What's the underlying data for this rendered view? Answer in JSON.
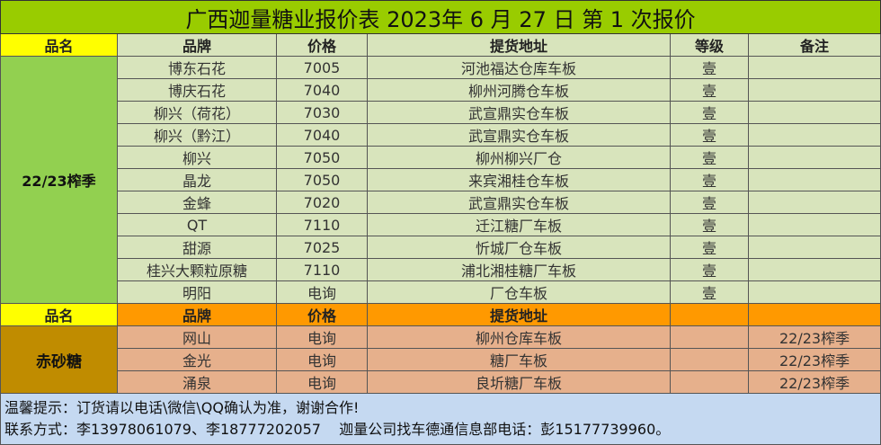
{
  "title": "广西迦量糖业报价表 2023年 6 月 27 日 第 1 次报价",
  "header1": {
    "name": "品名",
    "brand": "品牌",
    "price": "价格",
    "address": "提货地址",
    "grade": "等级",
    "remark": "备注"
  },
  "group1": {
    "label": "22/23榨季",
    "rows": [
      {
        "brand": "博东石花",
        "price": "7005",
        "address": "河池福达仓库车板",
        "grade": "壹",
        "remark": ""
      },
      {
        "brand": "博庆石花",
        "price": "7040",
        "address": "柳州河腾仓车板",
        "grade": "壹",
        "remark": ""
      },
      {
        "brand": "柳兴（荷花）",
        "price": "7030",
        "address": "武宣鼎实仓车板",
        "grade": "壹",
        "remark": ""
      },
      {
        "brand": "柳兴（黔江）",
        "price": "7040",
        "address": "武宣鼎实仓车板",
        "grade": "壹",
        "remark": ""
      },
      {
        "brand": "柳兴",
        "price": "7050",
        "address": "柳州柳兴厂仓",
        "grade": "壹",
        "remark": ""
      },
      {
        "brand": "晶龙",
        "price": "7050",
        "address": "来宾湘桂仓车板",
        "grade": "壹",
        "remark": ""
      },
      {
        "brand": "金蜂",
        "price": "7020",
        "address": "武宣鼎实仓车板",
        "grade": "壹",
        "remark": ""
      },
      {
        "brand": "QT",
        "price": "7110",
        "address": "迁江糖厂车板",
        "grade": "壹",
        "remark": ""
      },
      {
        "brand": "甜源",
        "price": "7025",
        "address": "忻城厂仓车板",
        "grade": "壹",
        "remark": ""
      },
      {
        "brand": "桂兴大颗粒原糖",
        "price": "7110",
        "address": "浦北湘桂糖厂车板",
        "grade": "壹",
        "remark": ""
      },
      {
        "brand": "明阳",
        "price": "电询",
        "address": "厂仓车板",
        "grade": "壹",
        "remark": ""
      }
    ]
  },
  "header2": {
    "name": "品名",
    "brand": "品牌",
    "price": "价格",
    "address": "提货地址",
    "grade": "",
    "remark": ""
  },
  "group2": {
    "label": "赤砂糖",
    "rows": [
      {
        "brand": "网山",
        "price": "电询",
        "address": "柳州仓库车板",
        "grade": "",
        "remark": "22/23榨季"
      },
      {
        "brand": "金光",
        "price": "电询",
        "address": "糖厂车板",
        "grade": "",
        "remark": "22/23榨季"
      },
      {
        "brand": "涌泉",
        "price": "电询",
        "address": "良圻糖厂车板",
        "grade": "",
        "remark": "22/23榨季"
      }
    ]
  },
  "footer": {
    "line1": "温馨提示：订货请以电话\\微信\\QQ确认为准，谢谢合作!",
    "line2": "联系方式：李13978061079、李18777202057    迦量公司找车德通信息部电话：彭15177739960。"
  }
}
